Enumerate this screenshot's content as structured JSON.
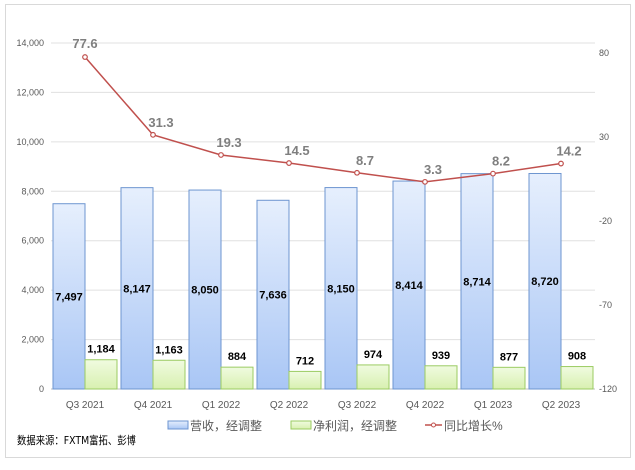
{
  "chart_data": {
    "type": "bar+line",
    "categories": [
      "Q3 2021",
      "Q4 2021",
      "Q1 2022",
      "Q2 2022",
      "Q3 2022",
      "Q4 2022",
      "Q1 2023",
      "Q2 2023"
    ],
    "series": [
      {
        "name": "营收，经调整",
        "type": "bar",
        "axis": "left",
        "values": [
          7497,
          8147,
          8050,
          7636,
          8150,
          8414,
          8714,
          8720
        ],
        "labels": [
          "7,497",
          "8,147",
          "8,050",
          "7,636",
          "8,150",
          "8,414",
          "8,714",
          "8,720"
        ],
        "color": "#a9c6f5"
      },
      {
        "name": "净利润，经调整",
        "type": "bar",
        "axis": "left",
        "values": [
          1184,
          1163,
          884,
          712,
          974,
          939,
          877,
          908
        ],
        "labels": [
          "1,184",
          "1,163",
          "884",
          "712",
          "974",
          "939",
          "877",
          "908"
        ],
        "color": "#e2f5c4"
      },
      {
        "name": "同比增长%",
        "type": "line",
        "axis": "right",
        "values": [
          77.6,
          31.3,
          19.3,
          14.5,
          8.7,
          3.3,
          8.2,
          14.2
        ],
        "labels": [
          "77.6",
          "31.3",
          "19.3",
          "14.5",
          "8.7",
          "3.3",
          "8.2",
          "14.2"
        ],
        "color": "#c0504d"
      }
    ],
    "ylim": [
      0,
      14000
    ],
    "yticks": [
      "0",
      "2,000",
      "4,000",
      "6,000",
      "8,000",
      "10,000",
      "12,000",
      "14,000"
    ],
    "y2ticks": [
      "-120",
      "-70",
      "-20",
      "30",
      "80"
    ],
    "y2tick_values": [
      -120,
      -70,
      -20,
      30,
      80
    ],
    "grid": true,
    "legend": "bottom"
  },
  "source": "数据来源：FXTM富拓、彭博"
}
